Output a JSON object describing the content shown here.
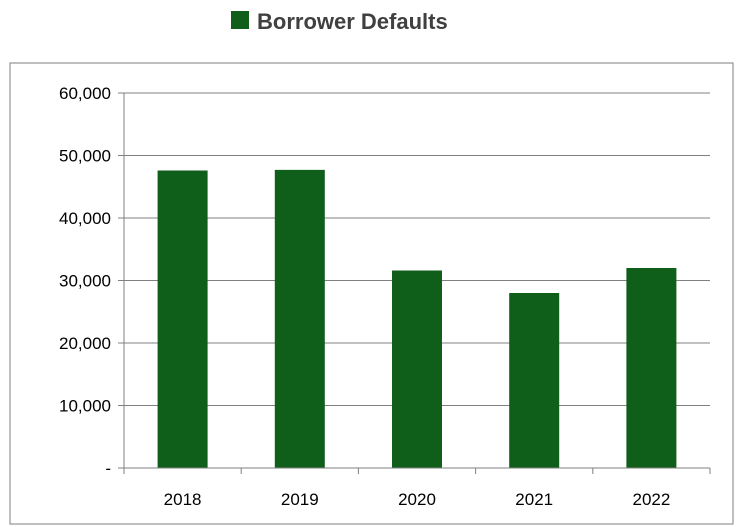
{
  "chart_data": {
    "type": "bar",
    "title": "",
    "xlabel": "",
    "ylabel": "",
    "categories": [
      "2018",
      "2019",
      "2020",
      "2021",
      "2022"
    ],
    "series": [
      {
        "name": "Borrower Defaults",
        "values": [
          47600,
          47700,
          31600,
          28000,
          32000
        ],
        "color": "#0f5e1a"
      }
    ],
    "ylim": [
      0,
      60000
    ],
    "yticks": [
      0,
      10000,
      20000,
      30000,
      40000,
      50000,
      60000
    ],
    "ytick_labels": [
      "-",
      "10,000",
      "20,000",
      "30,000",
      "40,000",
      "50,000",
      "60,000"
    ],
    "grid": true,
    "legend_position": "top"
  }
}
